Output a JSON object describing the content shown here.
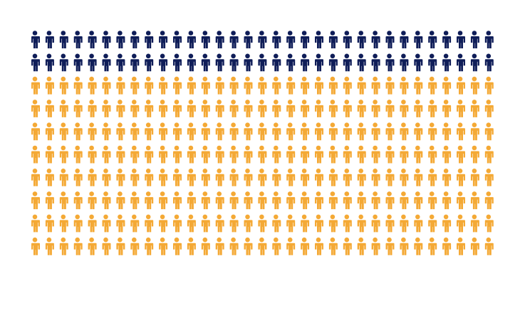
{
  "chart_data": {
    "type": "pictogram",
    "series": [
      {
        "color": "#0f1d58",
        "values": [
          66
        ]
      },
      {
        "color": "#f4a935",
        "values": [
          264
        ]
      }
    ]
  }
}
